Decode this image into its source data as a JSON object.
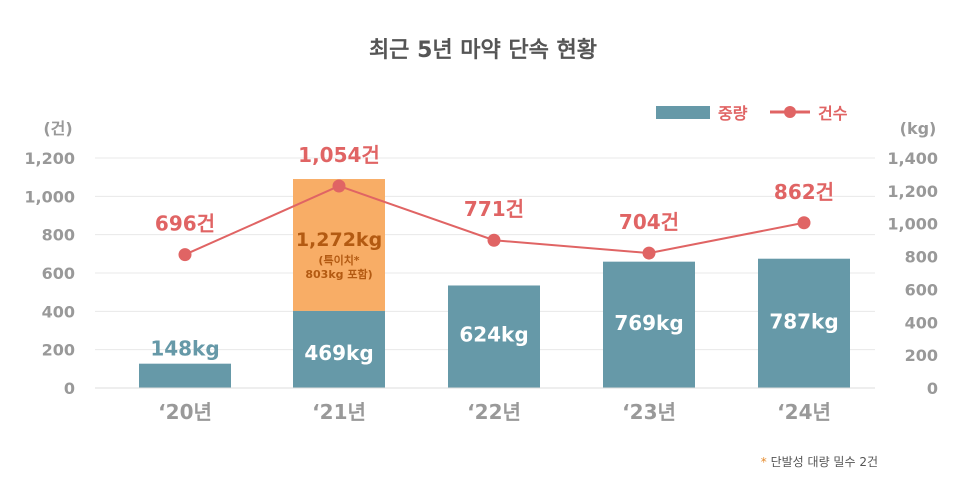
{
  "title": "최근 5년 마약 단속 현황",
  "footnote": {
    "star": "*",
    "text": "단발성 대량 밀수 2건"
  },
  "colors": {
    "bar": "#6699a8",
    "bar_highlight": "#f8ad66",
    "line": "#e06464",
    "axis_text": "#999999",
    "grid": "#e8e8e8",
    "label_dark": "#b35a12",
    "title": "#555555"
  },
  "chart_data": {
    "type": "bar",
    "title": "최근 5년 마약 단속 현황",
    "categories": [
      "‘20년",
      "‘21년",
      "‘22년",
      "‘23년",
      "‘24년"
    ],
    "legend": {
      "position": "top-right"
    },
    "left_axis": {
      "unit": "(건)",
      "ticks": [
        "0",
        "200",
        "400",
        "600",
        "800",
        "1,000",
        "1,200"
      ],
      "range": [
        0,
        1200
      ]
    },
    "right_axis": {
      "unit": "(kg)",
      "ticks": [
        "0",
        "200",
        "400",
        "600",
        "800",
        "1,000",
        "1,200",
        "1,400"
      ],
      "range": [
        0,
        1400
      ]
    },
    "grid": true,
    "series": [
      {
        "name": "중량",
        "kind": "bar",
        "axis": "right",
        "values": [
          148,
          469,
          624,
          769,
          787
        ],
        "labels": [
          "148kg",
          "469kg",
          "624kg",
          "769kg",
          "787kg"
        ]
      },
      {
        "name": "건수",
        "kind": "line",
        "axis": "left",
        "values": [
          696,
          1054,
          771,
          704,
          862
        ],
        "labels": [
          "696건",
          "1,054건",
          "771건",
          "704건",
          "862건"
        ]
      }
    ],
    "highlight": {
      "category": "‘21년",
      "total": 1272,
      "label": "1,272kg",
      "sublabel_1": "(특이치*",
      "sublabel_2": "803kg 포함)"
    }
  }
}
